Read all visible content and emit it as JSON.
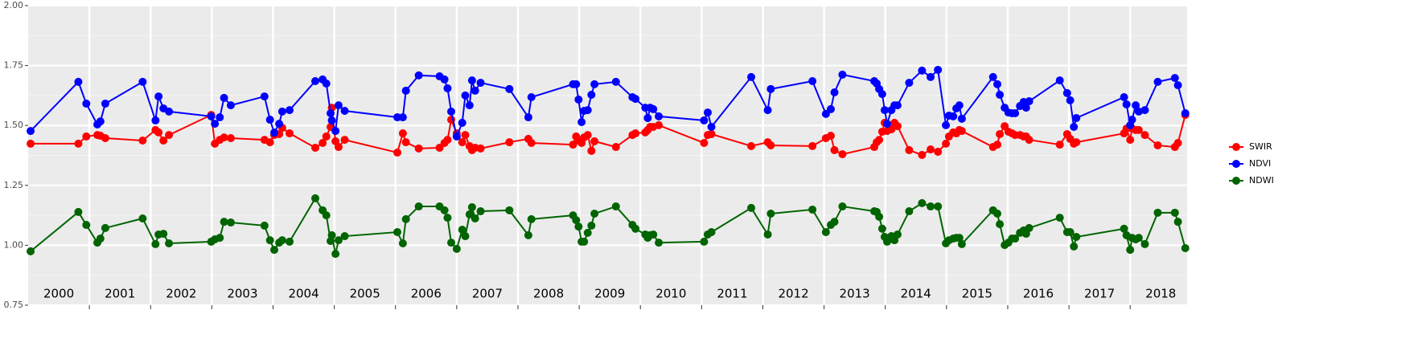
{
  "chart_data": {
    "type": "line",
    "x": [
      2000.04,
      2000.82,
      2000.95,
      2001.13,
      2001.18,
      2001.26,
      2001.87,
      2002.08,
      2002.13,
      2002.21,
      2002.3,
      2002.99,
      2003.05,
      2003.13,
      2003.2,
      2003.31,
      2003.86,
      2003.95,
      2004.02,
      2004.1,
      2004.15,
      2004.27,
      2004.69,
      2004.81,
      2004.87,
      2004.94,
      2004.96,
      2005.02,
      2005.07,
      2005.17,
      2006.03,
      2006.12,
      2006.17,
      2006.38,
      2006.72,
      2006.8,
      2006.85,
      2006.91,
      2007.0,
      2007.09,
      2007.14,
      2007.21,
      2007.25,
      2007.3,
      2007.39,
      2007.86,
      2008.17,
      2008.22,
      2008.9,
      2008.95,
      2008.99,
      2009.04,
      2009.08,
      2009.14,
      2009.2,
      2009.25,
      2009.6,
      2009.87,
      2009.92,
      2010.08,
      2010.12,
      2010.16,
      2010.21,
      2010.3,
      2011.04,
      2011.1,
      2011.16,
      2011.81,
      2012.08,
      2012.13,
      2012.81,
      2013.03,
      2013.11,
      2013.17,
      2013.3,
      2013.82,
      2013.86,
      2013.9,
      2013.95,
      2013.99,
      2014.03,
      2014.1,
      2014.15,
      2014.2,
      2014.39,
      2014.6,
      2014.74,
      2014.86,
      2014.99,
      2015.04,
      2015.11,
      2015.16,
      2015.21,
      2015.25,
      2015.76,
      2015.83,
      2015.87,
      2015.95,
      2016.01,
      2016.07,
      2016.12,
      2016.2,
      2016.26,
      2016.3,
      2016.35,
      2016.85,
      2016.97,
      2017.02,
      2017.08,
      2017.12,
      2017.9,
      2017.94,
      2018,
      2018.03,
      2018.09,
      2018.14,
      2018.24,
      2018.45,
      2018.73,
      2018.78,
      2018.9
    ],
    "series": [
      {
        "name": "SWIR",
        "color": "#ff0000",
        "values": [
          1.424,
          1.424,
          1.454,
          1.46,
          1.457,
          1.447,
          1.437,
          1.481,
          1.471,
          1.437,
          1.46,
          1.544,
          1.424,
          1.44,
          1.45,
          1.447,
          1.44,
          1.43,
          1.46,
          1.464,
          1.49,
          1.467,
          1.407,
          1.427,
          1.454,
          1.494,
          1.574,
          1.434,
          1.41,
          1.44,
          1.387,
          1.467,
          1.43,
          1.404,
          1.407,
          1.427,
          1.44,
          1.524,
          1.467,
          1.43,
          1.46,
          1.414,
          1.397,
          1.407,
          1.404,
          1.43,
          1.444,
          1.427,
          1.42,
          1.454,
          1.437,
          1.427,
          1.45,
          1.46,
          1.394,
          1.434,
          1.41,
          1.46,
          1.467,
          1.471,
          1.481,
          1.494,
          1.494,
          1.501,
          1.427,
          1.46,
          1.464,
          1.414,
          1.43,
          1.417,
          1.414,
          1.447,
          1.457,
          1.397,
          1.38,
          1.41,
          1.43,
          1.44,
          1.474,
          1.511,
          1.477,
          1.484,
          1.511,
          1.497,
          1.397,
          1.377,
          1.4,
          1.39,
          1.424,
          1.454,
          1.471,
          1.467,
          1.481,
          1.477,
          1.41,
          1.42,
          1.464,
          1.497,
          1.474,
          1.467,
          1.46,
          1.46,
          1.454,
          1.454,
          1.44,
          1.42,
          1.464,
          1.444,
          1.424,
          1.43,
          1.467,
          1.487,
          1.44,
          1.487,
          1.481,
          1.481,
          1.46,
          1.417,
          1.41,
          1.427,
          1.544
        ]
      },
      {
        "name": "NDVI",
        "color": "#0000ff",
        "values": [
          1.477,
          1.682,
          1.591,
          1.504,
          1.517,
          1.591,
          1.682,
          1.521,
          1.621,
          1.571,
          1.558,
          1.538,
          1.507,
          1.534,
          1.615,
          1.584,
          1.621,
          1.524,
          1.47,
          1.507,
          1.558,
          1.564,
          1.685,
          1.692,
          1.675,
          1.551,
          1.521,
          1.477,
          1.584,
          1.561,
          1.534,
          1.534,
          1.645,
          1.709,
          1.705,
          1.692,
          1.655,
          1.558,
          1.454,
          1.511,
          1.625,
          1.584,
          1.688,
          1.645,
          1.678,
          1.652,
          1.534,
          1.618,
          1.672,
          1.672,
          1.608,
          1.514,
          1.561,
          1.564,
          1.628,
          1.672,
          1.682,
          1.618,
          1.611,
          1.574,
          1.531,
          1.574,
          1.568,
          1.538,
          1.521,
          1.554,
          1.494,
          1.702,
          1.564,
          1.652,
          1.685,
          1.548,
          1.568,
          1.638,
          1.712,
          1.685,
          1.675,
          1.652,
          1.631,
          1.564,
          1.507,
          1.564,
          1.584,
          1.584,
          1.678,
          1.729,
          1.702,
          1.732,
          1.501,
          1.541,
          1.538,
          1.571,
          1.584,
          1.528,
          1.702,
          1.672,
          1.628,
          1.574,
          1.554,
          1.551,
          1.551,
          1.581,
          1.598,
          1.574,
          1.601,
          1.688,
          1.635,
          1.605,
          1.494,
          1.531,
          1.618,
          1.588,
          1.501,
          1.524,
          1.584,
          1.558,
          1.564,
          1.682,
          1.698,
          1.668,
          1.551
        ]
      },
      {
        "name": "NDWI",
        "color": "#006400",
        "values": [
          0.975,
          1.139,
          1.085,
          1.011,
          1.028,
          1.072,
          1.112,
          1.005,
          1.045,
          1.048,
          1.008,
          1.015,
          1.025,
          1.031,
          1.098,
          1.095,
          1.082,
          1.021,
          0.981,
          1.011,
          1.021,
          1.015,
          1.196,
          1.146,
          1.125,
          1.018,
          1.042,
          0.964,
          1.021,
          1.038,
          1.055,
          1.008,
          1.109,
          1.162,
          1.162,
          1.146,
          1.115,
          1.011,
          0.985,
          1.065,
          1.038,
          1.129,
          1.159,
          1.112,
          1.142,
          1.146,
          1.042,
          1.109,
          1.125,
          1.105,
          1.078,
          1.015,
          1.015,
          1.052,
          1.082,
          1.132,
          1.162,
          1.085,
          1.069,
          1.045,
          1.031,
          1.042,
          1.045,
          1.011,
          1.015,
          1.045,
          1.055,
          1.156,
          1.045,
          1.132,
          1.149,
          1.055,
          1.085,
          1.098,
          1.162,
          1.142,
          1.139,
          1.119,
          1.069,
          1.035,
          1.015,
          1.038,
          1.021,
          1.045,
          1.142,
          1.176,
          1.162,
          1.162,
          1.008,
          1.021,
          1.028,
          1.031,
          1.031,
          1.005,
          1.146,
          1.132,
          1.088,
          1.001,
          1.011,
          1.028,
          1.028,
          1.052,
          1.062,
          1.048,
          1.072,
          1.115,
          1.055,
          1.055,
          0.995,
          1.035,
          1.069,
          1.042,
          0.981,
          1.031,
          1.025,
          1.031,
          1.005,
          1.136,
          1.136,
          1.098,
          0.988
        ]
      }
    ],
    "xlim": [
      2000,
      2018.93
    ],
    "xticks": [
      2001,
      2002,
      2003,
      2004,
      2005,
      2006,
      2007,
      2008,
      2009,
      2010,
      2011,
      2012,
      2013,
      2014,
      2015,
      2016,
      2017,
      2018
    ],
    "year_labels": [
      {
        "value": 2000.5,
        "label": "2000"
      },
      {
        "value": 2001.5,
        "label": "2001"
      },
      {
        "value": 2002.5,
        "label": "2002"
      },
      {
        "value": 2003.5,
        "label": "2003"
      },
      {
        "value": 2004.5,
        "label": "2004"
      },
      {
        "value": 2005.5,
        "label": "2005"
      },
      {
        "value": 2006.5,
        "label": "2006"
      },
      {
        "value": 2007.5,
        "label": "2007"
      },
      {
        "value": 2008.5,
        "label": "2008"
      },
      {
        "value": 2009.5,
        "label": "2009"
      },
      {
        "value": 2010.5,
        "label": "2010"
      },
      {
        "value": 2011.5,
        "label": "2011"
      },
      {
        "value": 2012.5,
        "label": "2012"
      },
      {
        "value": 2013.5,
        "label": "2013"
      },
      {
        "value": 2014.5,
        "label": "2014"
      },
      {
        "value": 2015.5,
        "label": "2015"
      },
      {
        "value": 2016.5,
        "label": "2016"
      },
      {
        "value": 2017.5,
        "label": "2017"
      },
      {
        "value": 2018.5,
        "label": "2018"
      }
    ],
    "ylim": [
      0.75,
      2
    ],
    "yticks": [
      0.75,
      {
        "value": 1,
        "label": "1.00"
      },
      1.25,
      {
        "value": 1.5,
        "label": "1.50"
      },
      1.75,
      {
        "value": 2,
        "label": "2.00"
      }
    ],
    "grid": true,
    "legend": "right"
  }
}
